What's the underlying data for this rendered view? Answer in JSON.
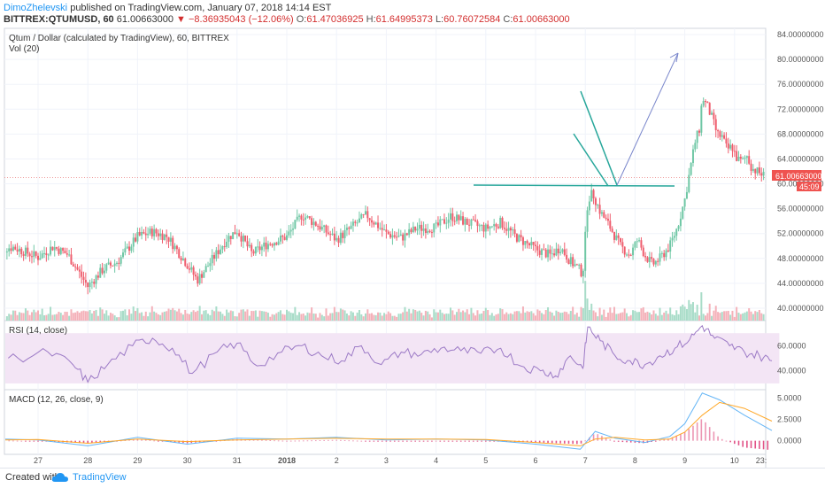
{
  "header": {
    "author": "DimoZhelevski",
    "published": " published on TradingView.com, January 07, 2018 14:14 EST",
    "symbol": "BITTREX:QTUMUSD, 60",
    "last": "61.00663000",
    "change": "▼ −8.36935043 (−12.06%)",
    "o_label": "O:",
    "o_value": "61.47036925",
    "h_label": "H:",
    "h_value": "61.64995373",
    "l_label": "L:",
    "l_value": "60.76072584",
    "c_label": "C:",
    "c_value": "61.00663000"
  },
  "panes": {
    "main_title": "Qtum / Dollar (calculated by TradingView), 60, BITTREX",
    "vol_title": "Vol (20)",
    "rsi_title": "RSI (14, close)",
    "macd_title": "MACD (12, 26, close, 9)"
  },
  "price_badge": "61.00663000",
  "countdown": "45:09",
  "footer": {
    "created": "Created with",
    "brand": "TradingView"
  },
  "colors": {
    "up": "#6fc7a5",
    "down": "#ef5e6e",
    "trend": "#26a69a",
    "arrow": "#7986cb",
    "rsi": "#9c7ac6",
    "rsi_band": "#f3e5f5",
    "macd": "#64b5f6",
    "signal": "#ffa726",
    "badge": "#ef5350"
  },
  "chart_data": [
    {
      "type": "candlestick",
      "title": "Qtum / Dollar (calculated by TradingView), 60, BITTREX",
      "x_ticks": [
        "27",
        "28",
        "29",
        "30",
        "31",
        "2018",
        "2",
        "3",
        "4",
        "5",
        "6",
        "7",
        "8",
        "9",
        "10",
        "23:"
      ],
      "y_ticks": [
        "84.00000000",
        "80.00000000",
        "76.00000000",
        "72.00000000",
        "68.00000000",
        "64.00000000",
        "60.00000000",
        "56.00000000",
        "52.00000000",
        "48.00000000",
        "44.00000000",
        "40.00000000"
      ],
      "ylim": [
        38,
        85
      ],
      "last_price": 61.00663,
      "points": [
        {
          "day": 26.0,
          "price": 49.5
        },
        {
          "day": 26.5,
          "price": 49.8
        },
        {
          "day": 27.0,
          "price": 48.2
        },
        {
          "day": 27.3,
          "price": 49.9
        },
        {
          "day": 27.6,
          "price": 48.6
        },
        {
          "day": 28.0,
          "price": 43.5
        },
        {
          "day": 28.3,
          "price": 46.2
        },
        {
          "day": 28.6,
          "price": 47.5
        },
        {
          "day": 29.0,
          "price": 51.5
        },
        {
          "day": 29.3,
          "price": 52.3
        },
        {
          "day": 29.6,
          "price": 51.5
        },
        {
          "day": 30.0,
          "price": 47.0
        },
        {
          "day": 30.2,
          "price": 44.5
        },
        {
          "day": 30.5,
          "price": 47.8
        },
        {
          "day": 30.8,
          "price": 51.2
        },
        {
          "day": 31.0,
          "price": 52.5
        },
        {
          "day": 31.3,
          "price": 48.8
        },
        {
          "day": 31.6,
          "price": 50.3
        },
        {
          "day": 32.0,
          "price": 51.5
        },
        {
          "day": 32.3,
          "price": 55.0
        },
        {
          "day": 32.6,
          "price": 53.5
        },
        {
          "day": 33.0,
          "price": 51.0
        },
        {
          "day": 33.3,
          "price": 53.0
        },
        {
          "day": 33.6,
          "price": 55.0
        },
        {
          "day": 34.0,
          "price": 52.0
        },
        {
          "day": 34.3,
          "price": 51.3
        },
        {
          "day": 34.6,
          "price": 52.8
        },
        {
          "day": 35.0,
          "price": 53.0
        },
        {
          "day": 35.3,
          "price": 54.8
        },
        {
          "day": 35.6,
          "price": 53.8
        },
        {
          "day": 36.0,
          "price": 52.8
        },
        {
          "day": 36.3,
          "price": 53.8
        },
        {
          "day": 36.6,
          "price": 51.5
        },
        {
          "day": 36.8,
          "price": 50.5
        },
        {
          "day": 37.0,
          "price": 49.5
        },
        {
          "day": 37.3,
          "price": 48.5
        },
        {
          "day": 37.5,
          "price": 49.8
        },
        {
          "day": 37.7,
          "price": 47.5
        },
        {
          "day": 37.85,
          "price": 46.5
        },
        {
          "day": 37.95,
          "price": 45.5
        },
        {
          "day": 38.05,
          "price": 57.5
        },
        {
          "day": 38.15,
          "price": 58.5
        },
        {
          "day": 38.3,
          "price": 55.5
        },
        {
          "day": 38.5,
          "price": 53.0
        },
        {
          "day": 38.7,
          "price": 50.0
        },
        {
          "day": 38.9,
          "price": 48.5
        },
        {
          "day": 39.05,
          "price": 51.0
        },
        {
          "day": 39.2,
          "price": 48.5
        },
        {
          "day": 39.35,
          "price": 47.0
        },
        {
          "day": 39.5,
          "price": 48.0
        },
        {
          "day": 39.7,
          "price": 50.0
        },
        {
          "day": 39.85,
          "price": 53.0
        },
        {
          "day": 40.0,
          "price": 57.5
        },
        {
          "day": 40.1,
          "price": 62.0
        },
        {
          "day": 40.2,
          "price": 66.5
        },
        {
          "day": 40.3,
          "price": 69.0
        },
        {
          "day": 40.35,
          "price": 74.0
        },
        {
          "day": 40.45,
          "price": 72.5
        },
        {
          "day": 40.55,
          "price": 70.5
        },
        {
          "day": 40.65,
          "price": 68.0
        },
        {
          "day": 40.75,
          "price": 67.5
        },
        {
          "day": 40.85,
          "price": 65.5
        },
        {
          "day": 40.95,
          "price": 66.0
        },
        {
          "day": 41.05,
          "price": 64.0
        },
        {
          "day": 41.15,
          "price": 63.5
        },
        {
          "day": 41.25,
          "price": 64.5
        },
        {
          "day": 41.35,
          "price": 62.5
        },
        {
          "day": 41.45,
          "price": 62.0
        },
        {
          "day": 41.55,
          "price": 61.5
        },
        {
          "day": 41.65,
          "price": 61.0
        },
        {
          "day": 41.75,
          "price": 61.0
        }
      ]
    },
    {
      "type": "line",
      "title": "RSI (14, close)",
      "y_ticks": [
        "60.0000",
        "40.0000"
      ],
      "ylim": [
        25,
        80
      ],
      "band": [
        30,
        70
      ],
      "series": [
        {
          "points": [
            {
              "day": 26.0,
              "value": 52
            },
            {
              "day": 26.6,
              "value": 50
            },
            {
              "day": 27.2,
              "value": 55
            },
            {
              "day": 27.7,
              "value": 45
            },
            {
              "day": 28.0,
              "value": 31
            },
            {
              "day": 28.4,
              "value": 45
            },
            {
              "day": 28.9,
              "value": 60
            },
            {
              "day": 29.3,
              "value": 66
            },
            {
              "day": 29.7,
              "value": 58
            },
            {
              "day": 30.1,
              "value": 38
            },
            {
              "day": 30.6,
              "value": 55
            },
            {
              "day": 31.0,
              "value": 62
            },
            {
              "day": 31.4,
              "value": 44
            },
            {
              "day": 31.9,
              "value": 55
            },
            {
              "day": 32.3,
              "value": 60
            },
            {
              "day": 32.7,
              "value": 52
            },
            {
              "day": 33.1,
              "value": 48
            },
            {
              "day": 33.5,
              "value": 60
            },
            {
              "day": 33.9,
              "value": 45
            },
            {
              "day": 34.3,
              "value": 55
            },
            {
              "day": 34.7,
              "value": 53
            },
            {
              "day": 35.1,
              "value": 58
            },
            {
              "day": 35.5,
              "value": 56
            },
            {
              "day": 35.9,
              "value": 54
            },
            {
              "day": 36.3,
              "value": 58
            },
            {
              "day": 36.7,
              "value": 44
            },
            {
              "day": 37.1,
              "value": 40
            },
            {
              "day": 37.4,
              "value": 36
            },
            {
              "day": 37.7,
              "value": 52
            },
            {
              "day": 37.95,
              "value": 42
            },
            {
              "day": 38.05,
              "value": 75
            },
            {
              "day": 38.3,
              "value": 64
            },
            {
              "day": 38.6,
              "value": 52
            },
            {
              "day": 38.9,
              "value": 48
            },
            {
              "day": 39.2,
              "value": 45
            },
            {
              "day": 39.5,
              "value": 52
            },
            {
              "day": 39.8,
              "value": 58
            },
            {
              "day": 40.1,
              "value": 65
            },
            {
              "day": 40.35,
              "value": 76
            },
            {
              "day": 40.6,
              "value": 66
            },
            {
              "day": 40.9,
              "value": 60
            },
            {
              "day": 41.2,
              "value": 55
            },
            {
              "day": 41.5,
              "value": 52
            },
            {
              "day": 41.75,
              "value": 48
            }
          ]
        }
      ]
    },
    {
      "type": "line",
      "title": "MACD (12, 26, close, 9)",
      "y_ticks": [
        "5.0000",
        "2.5000",
        "0.0000"
      ],
      "ylim": [
        -1.6,
        6.0
      ],
      "series": [
        {
          "points": [
            {
              "day": 26.0,
              "value": 0.2
            },
            {
              "day": 27.0,
              "value": 0.1
            },
            {
              "day": 28.0,
              "value": -0.6
            },
            {
              "day": 29.0,
              "value": 0.4
            },
            {
              "day": 30.0,
              "value": -0.4
            },
            {
              "day": 31.0,
              "value": 0.3
            },
            {
              "day": 32.0,
              "value": 0.2
            },
            {
              "day": 33.0,
              "value": 0.4
            },
            {
              "day": 34.0,
              "value": 0.1
            },
            {
              "day": 35.0,
              "value": 0.2
            },
            {
              "day": 36.0,
              "value": 0.1
            },
            {
              "day": 37.0,
              "value": -0.4
            },
            {
              "day": 37.9,
              "value": -1.0
            },
            {
              "day": 38.2,
              "value": 1.1
            },
            {
              "day": 38.6,
              "value": 0.3
            },
            {
              "day": 39.2,
              "value": -0.2
            },
            {
              "day": 39.7,
              "value": 0.5
            },
            {
              "day": 40.0,
              "value": 2.0
            },
            {
              "day": 40.35,
              "value": 5.6
            },
            {
              "day": 40.7,
              "value": 4.8
            },
            {
              "day": 41.2,
              "value": 3.0
            },
            {
              "day": 41.75,
              "value": 1.2
            }
          ]
        },
        {
          "points": [
            {
              "day": 26.0,
              "value": 0.1
            },
            {
              "day": 27.0,
              "value": 0.15
            },
            {
              "day": 28.0,
              "value": -0.3
            },
            {
              "day": 29.0,
              "value": 0.2
            },
            {
              "day": 30.0,
              "value": -0.1
            },
            {
              "day": 31.0,
              "value": 0.1
            },
            {
              "day": 32.0,
              "value": 0.2
            },
            {
              "day": 33.0,
              "value": 0.3
            },
            {
              "day": 34.0,
              "value": 0.2
            },
            {
              "day": 35.0,
              "value": 0.2
            },
            {
              "day": 36.0,
              "value": 0.15
            },
            {
              "day": 37.0,
              "value": -0.2
            },
            {
              "day": 37.9,
              "value": -0.6
            },
            {
              "day": 38.2,
              "value": 0.2
            },
            {
              "day": 38.6,
              "value": 0.4
            },
            {
              "day": 39.2,
              "value": 0.1
            },
            {
              "day": 39.7,
              "value": 0.2
            },
            {
              "day": 40.0,
              "value": 1.0
            },
            {
              "day": 40.35,
              "value": 3.0
            },
            {
              "day": 40.7,
              "value": 4.5
            },
            {
              "day": 41.2,
              "value": 3.8
            },
            {
              "day": 41.75,
              "value": 2.3
            }
          ]
        }
      ]
    }
  ]
}
